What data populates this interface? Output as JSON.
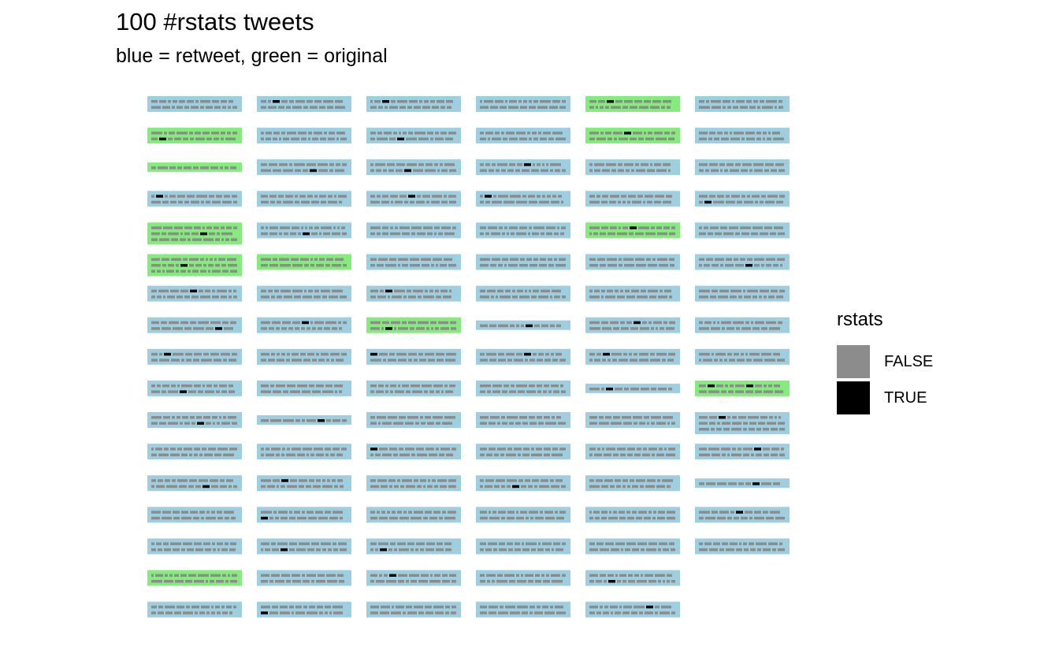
{
  "chart_data": {
    "type": "waffle",
    "title": "100 #rstats tweets",
    "subtitle": "blue = retweet, green = original",
    "fill_legend": {
      "title": "rstats",
      "entries": [
        {
          "label": "FALSE",
          "color": "#8c8c8c"
        },
        {
          "label": "TRUE",
          "color": "#000000"
        }
      ]
    },
    "tweet_colors": {
      "retweet": "#9ecfe0",
      "original": "#86eb7d"
    },
    "word_colors": {
      "FALSE": "#8c8c8c",
      "TRUE": "#000000"
    },
    "columns": [
      [
        {
          "type": "retweet",
          "line_count": 2,
          "rstats_positions": []
        },
        {
          "type": "original",
          "line_count": 2,
          "rstats_positions": [
            [
              1,
              1
            ]
          ]
        },
        {
          "type": "original",
          "line_count": 1,
          "rstats_positions": []
        },
        {
          "type": "retweet",
          "line_count": 2,
          "rstats_positions": [
            [
              0,
              1
            ]
          ]
        },
        {
          "type": "original",
          "line_count": 3,
          "rstats_positions": [
            [
              1,
              6
            ]
          ]
        },
        {
          "type": "original",
          "line_count": 3,
          "rstats_positions": [
            [
              1,
              4
            ]
          ]
        },
        {
          "type": "retweet",
          "line_count": 2,
          "rstats_positions": [
            [
              0,
              4
            ]
          ]
        },
        {
          "type": "retweet",
          "line_count": 2,
          "rstats_positions": [
            [
              1,
              6
            ]
          ]
        },
        {
          "type": "retweet",
          "line_count": 2,
          "rstats_positions": [
            [
              0,
              2
            ]
          ]
        },
        {
          "type": "retweet",
          "line_count": 2,
          "rstats_positions": [
            [
              1,
              3
            ]
          ]
        },
        {
          "type": "retweet",
          "line_count": 2,
          "rstats_positions": [
            [
              1,
              6
            ]
          ]
        },
        {
          "type": "retweet",
          "line_count": 2,
          "rstats_positions": []
        },
        {
          "type": "retweet",
          "line_count": 2,
          "rstats_positions": [
            [
              1,
              6
            ]
          ]
        },
        {
          "type": "retweet",
          "line_count": 2,
          "rstats_positions": []
        },
        {
          "type": "retweet",
          "line_count": 2,
          "rstats_positions": []
        },
        {
          "type": "original",
          "line_count": 2,
          "rstats_positions": []
        },
        {
          "type": "retweet",
          "line_count": 2,
          "rstats_positions": []
        }
      ],
      [
        {
          "type": "retweet",
          "line_count": 2,
          "rstats_positions": [
            [
              0,
              2
            ]
          ]
        },
        {
          "type": "retweet",
          "line_count": 2,
          "rstats_positions": []
        },
        {
          "type": "retweet",
          "line_count": 2,
          "rstats_positions": [
            [
              1,
              5
            ]
          ]
        },
        {
          "type": "retweet",
          "line_count": 2,
          "rstats_positions": []
        },
        {
          "type": "retweet",
          "line_count": 2,
          "rstats_positions": [
            [
              1,
              6
            ]
          ]
        },
        {
          "type": "original",
          "line_count": 2,
          "rstats_positions": []
        },
        {
          "type": "retweet",
          "line_count": 2,
          "rstats_positions": []
        },
        {
          "type": "retweet",
          "line_count": 2,
          "rstats_positions": [
            [
              0,
              4
            ]
          ]
        },
        {
          "type": "retweet",
          "line_count": 2,
          "rstats_positions": []
        },
        {
          "type": "retweet",
          "line_count": 2,
          "rstats_positions": []
        },
        {
          "type": "retweet",
          "line_count": 1,
          "rstats_positions": [
            [
              0,
              6
            ]
          ]
        },
        {
          "type": "retweet",
          "line_count": 2,
          "rstats_positions": []
        },
        {
          "type": "retweet",
          "line_count": 2,
          "rstats_positions": [
            [
              0,
              2
            ]
          ]
        },
        {
          "type": "retweet",
          "line_count": 2,
          "rstats_positions": [
            [
              1,
              0
            ]
          ]
        },
        {
          "type": "retweet",
          "line_count": 2,
          "rstats_positions": [
            [
              1,
              3
            ]
          ]
        },
        {
          "type": "retweet",
          "line_count": 2,
          "rstats_positions": []
        },
        {
          "type": "retweet",
          "line_count": 2,
          "rstats_positions": [
            [
              1,
              0
            ]
          ]
        }
      ],
      [
        {
          "type": "retweet",
          "line_count": 2,
          "rstats_positions": [
            [
              0,
              2
            ]
          ]
        },
        {
          "type": "retweet",
          "line_count": 2,
          "rstats_positions": [
            [
              1,
              3
            ]
          ]
        },
        {
          "type": "retweet",
          "line_count": 2,
          "rstats_positions": [
            [
              1,
              5
            ]
          ]
        },
        {
          "type": "retweet",
          "line_count": 2,
          "rstats_positions": [
            [
              0,
              5
            ]
          ]
        },
        {
          "type": "retweet",
          "line_count": 2,
          "rstats_positions": []
        },
        {
          "type": "retweet",
          "line_count": 2,
          "rstats_positions": []
        },
        {
          "type": "retweet",
          "line_count": 2,
          "rstats_positions": [
            [
              0,
              2
            ]
          ]
        },
        {
          "type": "original",
          "line_count": 2,
          "rstats_positions": [
            [
              1,
              2
            ]
          ]
        },
        {
          "type": "retweet",
          "line_count": 2,
          "rstats_positions": [
            [
              0,
              0
            ]
          ]
        },
        {
          "type": "retweet",
          "line_count": 2,
          "rstats_positions": []
        },
        {
          "type": "retweet",
          "line_count": 2,
          "rstats_positions": []
        },
        {
          "type": "retweet",
          "line_count": 2,
          "rstats_positions": [
            [
              0,
              0
            ]
          ]
        },
        {
          "type": "retweet",
          "line_count": 2,
          "rstats_positions": []
        },
        {
          "type": "retweet",
          "line_count": 2,
          "rstats_positions": []
        },
        {
          "type": "retweet",
          "line_count": 2,
          "rstats_positions": [
            [
              1,
              2
            ]
          ]
        },
        {
          "type": "retweet",
          "line_count": 2,
          "rstats_positions": [
            [
              0,
              3
            ]
          ]
        },
        {
          "type": "retweet",
          "line_count": 2,
          "rstats_positions": []
        }
      ],
      [
        {
          "type": "retweet",
          "line_count": 2,
          "rstats_positions": []
        },
        {
          "type": "retweet",
          "line_count": 2,
          "rstats_positions": []
        },
        {
          "type": "retweet",
          "line_count": 2,
          "rstats_positions": [
            [
              0,
              6
            ]
          ]
        },
        {
          "type": "retweet",
          "line_count": 2,
          "rstats_positions": [
            [
              0,
              1
            ]
          ]
        },
        {
          "type": "retweet",
          "line_count": 2,
          "rstats_positions": []
        },
        {
          "type": "retweet",
          "line_count": 2,
          "rstats_positions": []
        },
        {
          "type": "retweet",
          "line_count": 2,
          "rstats_positions": []
        },
        {
          "type": "retweet",
          "line_count": 1,
          "rstats_positions": [
            [
              0,
              6
            ]
          ]
        },
        {
          "type": "retweet",
          "line_count": 2,
          "rstats_positions": [
            [
              0,
              5
            ]
          ]
        },
        {
          "type": "retweet",
          "line_count": 2,
          "rstats_positions": []
        },
        {
          "type": "retweet",
          "line_count": 2,
          "rstats_positions": []
        },
        {
          "type": "retweet",
          "line_count": 2,
          "rstats_positions": []
        },
        {
          "type": "retweet",
          "line_count": 2,
          "rstats_positions": [
            [
              1,
              5
            ]
          ]
        },
        {
          "type": "retweet",
          "line_count": 2,
          "rstats_positions": []
        },
        {
          "type": "retweet",
          "line_count": 2,
          "rstats_positions": []
        },
        {
          "type": "retweet",
          "line_count": 2,
          "rstats_positions": []
        },
        {
          "type": "retweet",
          "line_count": 2,
          "rstats_positions": []
        }
      ],
      [
        {
          "type": "original",
          "line_count": 2,
          "rstats_positions": [
            [
              0,
              2
            ]
          ]
        },
        {
          "type": "original",
          "line_count": 2,
          "rstats_positions": [
            [
              0,
              4
            ]
          ]
        },
        {
          "type": "retweet",
          "line_count": 2,
          "rstats_positions": []
        },
        {
          "type": "retweet",
          "line_count": 2,
          "rstats_positions": []
        },
        {
          "type": "original",
          "line_count": 2,
          "rstats_positions": [
            [
              0,
              5
            ]
          ]
        },
        {
          "type": "retweet",
          "line_count": 2,
          "rstats_positions": []
        },
        {
          "type": "retweet",
          "line_count": 2,
          "rstats_positions": []
        },
        {
          "type": "retweet",
          "line_count": 2,
          "rstats_positions": [
            [
              0,
              5
            ]
          ]
        },
        {
          "type": "retweet",
          "line_count": 2,
          "rstats_positions": [
            [
              0,
              2
            ]
          ]
        },
        {
          "type": "retweet",
          "line_count": 1,
          "rstats_positions": [
            [
              0,
              2
            ]
          ]
        },
        {
          "type": "retweet",
          "line_count": 2,
          "rstats_positions": []
        },
        {
          "type": "retweet",
          "line_count": 2,
          "rstats_positions": []
        },
        {
          "type": "retweet",
          "line_count": 2,
          "rstats_positions": []
        },
        {
          "type": "retweet",
          "line_count": 2,
          "rstats_positions": []
        },
        {
          "type": "retweet",
          "line_count": 2,
          "rstats_positions": []
        },
        {
          "type": "retweet",
          "line_count": 2,
          "rstats_positions": [
            [
              1,
              3
            ]
          ]
        },
        {
          "type": "retweet",
          "line_count": 2,
          "rstats_positions": [
            [
              0,
              7
            ]
          ]
        }
      ],
      [
        {
          "type": "retweet",
          "line_count": 2,
          "rstats_positions": []
        },
        {
          "type": "retweet",
          "line_count": 2,
          "rstats_positions": []
        },
        {
          "type": "retweet",
          "line_count": 2,
          "rstats_positions": []
        },
        {
          "type": "retweet",
          "line_count": 2,
          "rstats_positions": [
            [
              1,
              1
            ]
          ]
        },
        {
          "type": "retweet",
          "line_count": 2,
          "rstats_positions": []
        },
        {
          "type": "retweet",
          "line_count": 2,
          "rstats_positions": [
            [
              1,
              6
            ]
          ]
        },
        {
          "type": "retweet",
          "line_count": 2,
          "rstats_positions": []
        },
        {
          "type": "retweet",
          "line_count": 2,
          "rstats_positions": []
        },
        {
          "type": "retweet",
          "line_count": 2,
          "rstats_positions": []
        },
        {
          "type": "original",
          "line_count": 2,
          "rstats_positions": [
            [
              0,
              1
            ],
            [
              0,
              6
            ]
          ]
        },
        {
          "type": "retweet",
          "line_count": 3,
          "rstats_positions": [
            [
              0,
              2
            ]
          ]
        },
        {
          "type": "retweet",
          "line_count": 2,
          "rstats_positions": [
            [
              0,
              6
            ]
          ]
        },
        {
          "type": "retweet",
          "line_count": 1,
          "rstats_positions": [
            [
              0,
              6
            ]
          ]
        },
        {
          "type": "retweet",
          "line_count": 2,
          "rstats_positions": [
            [
              0,
              4
            ]
          ]
        },
        {
          "type": "retweet",
          "line_count": 2,
          "rstats_positions": []
        }
      ]
    ]
  },
  "legend": {
    "title": "rstats",
    "items": [
      {
        "label": "FALSE",
        "color": "#8c8c8c"
      },
      {
        "label": "TRUE",
        "color": "#000000"
      }
    ]
  }
}
